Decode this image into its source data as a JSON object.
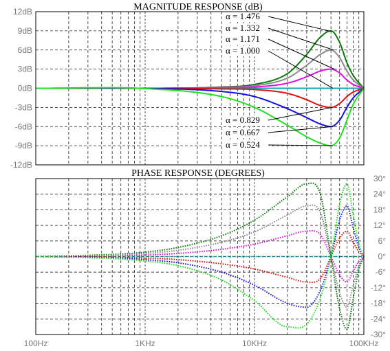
{
  "chart_data": [
    {
      "type": "line",
      "title": "MAGNITUDE RESPONSE (dB)",
      "x_scale": "log",
      "x_unit": "Hz",
      "y_unit": "dB",
      "xlim": [
        100,
        100000
      ],
      "ylim": [
        -12,
        12
      ],
      "grid": true,
      "y_ticks": [
        "12dB",
        "9dB",
        "6dB",
        "3dB",
        "0dB",
        "-3dB",
        "-6dB",
        "-9dB",
        "-12dB"
      ],
      "series": [
        {
          "name": "α = 1.476",
          "color": "#0a7a0a",
          "x": [
            100,
            1000,
            5000,
            10000,
            20000,
            30000,
            40000,
            50000,
            60000,
            70000,
            80000,
            100000
          ],
          "y": [
            0,
            0,
            0.2,
            0.6,
            2.3,
            5.3,
            8.0,
            9.0,
            7.2,
            4.0,
            2.0,
            0
          ]
        },
        {
          "name": "α = 1.332",
          "color": "#8a8a8a",
          "x": [
            100,
            1000,
            5000,
            10000,
            20000,
            30000,
            40000,
            50000,
            60000,
            70000,
            80000,
            100000
          ],
          "y": [
            0,
            0,
            0.15,
            0.4,
            1.6,
            3.6,
            5.3,
            6.0,
            4.8,
            2.7,
            1.3,
            0
          ]
        },
        {
          "name": "α = 1.171",
          "color": "#e010e0",
          "x": [
            100,
            1000,
            5000,
            10000,
            20000,
            30000,
            40000,
            50000,
            60000,
            70000,
            80000,
            100000
          ],
          "y": [
            0,
            0,
            0.1,
            0.2,
            0.8,
            1.8,
            2.7,
            3.0,
            2.4,
            1.3,
            0.6,
            0
          ]
        },
        {
          "name": "α = 1.000",
          "color": "#10a8a8",
          "x": [
            100,
            100000
          ],
          "y": [
            0,
            0
          ]
        },
        {
          "name": "α = 0.829",
          "color": "#e01010",
          "x": [
            100,
            1000,
            5000,
            10000,
            20000,
            30000,
            40000,
            50000,
            60000,
            70000,
            80000,
            100000
          ],
          "y": [
            0,
            0,
            -0.1,
            -0.2,
            -0.8,
            -1.8,
            -2.7,
            -3.0,
            -2.4,
            -1.3,
            -0.6,
            0
          ]
        },
        {
          "name": "α = 0.667",
          "color": "#1010e0",
          "x": [
            100,
            1000,
            5000,
            10000,
            20000,
            30000,
            40000,
            50000,
            60000,
            70000,
            80000,
            100000
          ],
          "y": [
            0,
            -0.02,
            -0.5,
            -1.3,
            -3.2,
            -4.6,
            -5.6,
            -6.0,
            -5.0,
            -3.0,
            -1.5,
            0
          ]
        },
        {
          "name": "α = 0.524",
          "color": "#20e020",
          "x": [
            100,
            1000,
            5000,
            10000,
            20000,
            30000,
            40000,
            50000,
            60000,
            70000,
            80000,
            100000
          ],
          "y": [
            0,
            -0.05,
            -1.3,
            -3.0,
            -5.8,
            -7.6,
            -8.6,
            -9.0,
            -7.8,
            -5.0,
            -2.5,
            0
          ]
        }
      ]
    },
    {
      "type": "line",
      "title": "PHASE RESPONSE (DEGREES)",
      "x_scale": "log",
      "x_unit": "Hz",
      "y_unit": "degrees",
      "xlim": [
        100,
        100000
      ],
      "ylim": [
        -30,
        30
      ],
      "grid": true,
      "x_ticks": [
        "100Hz",
        "1KHz",
        "10KHz",
        "100KHz"
      ],
      "y_ticks": [
        "30°",
        "24°",
        "18°",
        "12°",
        "6°",
        "0°",
        "-6°",
        "-12°",
        "-18°",
        "-24°",
        "-30°"
      ],
      "series": [
        {
          "color": "#0a7a0a",
          "x": [
            100,
            200,
            500,
            1000,
            2000,
            5000,
            10000,
            20000,
            30000,
            40000,
            50000,
            60000,
            70000,
            80000,
            90000,
            100000
          ],
          "y": [
            0,
            0.3,
            0.8,
            1.7,
            3.5,
            8,
            14,
            23,
            28,
            24,
            0,
            -20,
            -28,
            -16,
            -5,
            0
          ]
        },
        {
          "color": "#8a8a8a",
          "x": [
            100,
            200,
            500,
            1000,
            2000,
            5000,
            10000,
            20000,
            30000,
            40000,
            50000,
            60000,
            70000,
            80000,
            90000,
            100000
          ],
          "y": [
            0,
            0.2,
            0.5,
            1.2,
            2.4,
            5.5,
            9.5,
            16,
            19.5,
            17,
            0,
            -14,
            -19.5,
            -11,
            -3.5,
            0
          ]
        },
        {
          "color": "#e010e0",
          "x": [
            100,
            200,
            500,
            1000,
            2000,
            5000,
            10000,
            20000,
            30000,
            40000,
            50000,
            60000,
            70000,
            80000,
            90000,
            100000
          ],
          "y": [
            0,
            0.1,
            0.25,
            0.6,
            1.2,
            2.8,
            4.8,
            8,
            9.8,
            8.5,
            0,
            -7,
            -9.8,
            -5.5,
            -1.8,
            0
          ]
        },
        {
          "color": "#10a8a8",
          "x": [
            100,
            100000
          ],
          "y": [
            0,
            0
          ]
        },
        {
          "color": "#e01010",
          "x": [
            100,
            200,
            500,
            1000,
            2000,
            5000,
            10000,
            20000,
            30000,
            40000,
            50000,
            60000,
            70000,
            80000,
            90000,
            100000
          ],
          "y": [
            0,
            -0.1,
            -0.25,
            -0.6,
            -1.2,
            -2.8,
            -4.8,
            -8,
            -9.8,
            -8.5,
            0,
            7,
            9.8,
            5.5,
            1.8,
            0
          ]
        },
        {
          "color": "#1010e0",
          "x": [
            100,
            200,
            500,
            1000,
            2000,
            5000,
            10000,
            20000,
            30000,
            40000,
            50000,
            60000,
            70000,
            80000,
            90000,
            100000
          ],
          "y": [
            0,
            -0.2,
            -0.5,
            -1.2,
            -2.4,
            -6,
            -11,
            -18,
            -19.5,
            -13,
            0,
            14,
            19.5,
            11,
            3.5,
            0
          ]
        },
        {
          "color": "#20e020",
          "x": [
            100,
            200,
            500,
            1000,
            2000,
            5000,
            10000,
            20000,
            30000,
            40000,
            50000,
            60000,
            70000,
            80000,
            90000,
            100000
          ],
          "y": [
            0,
            -0.3,
            -0.8,
            -1.7,
            -3.5,
            -9,
            -17,
            -27,
            -26,
            -16,
            0,
            20,
            28,
            16,
            5,
            0
          ]
        }
      ]
    }
  ]
}
